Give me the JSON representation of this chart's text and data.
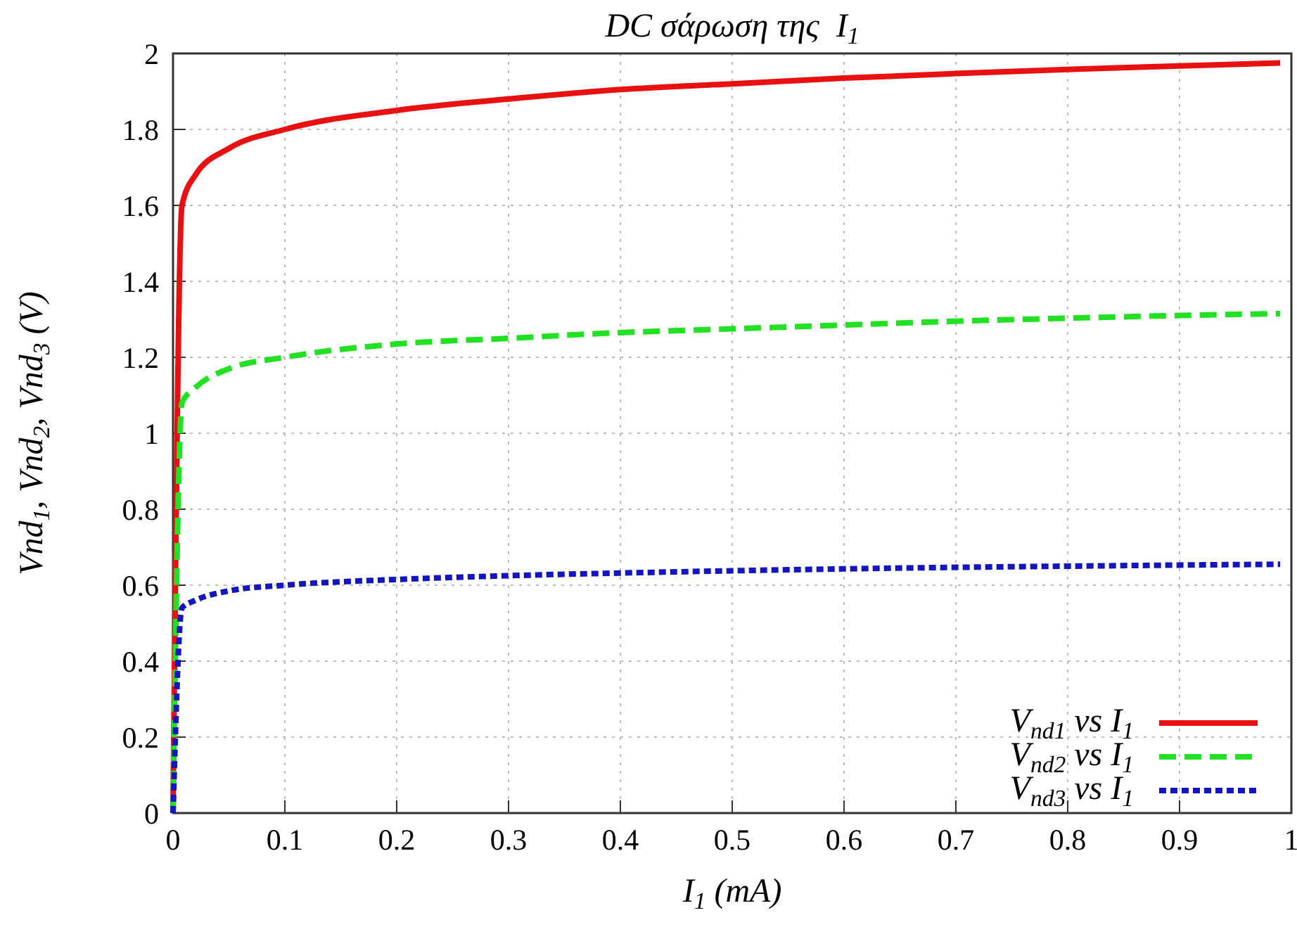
{
  "chart_data": {
    "type": "line",
    "title": "DC σάρωση της  I$_{1}$",
    "xlabel": "I$_{1}$ (mA)",
    "ylabel": "Vnd$_{1}$, Vnd$_{2}$, Vnd$_{3}$ (V)",
    "xlim": [
      0,
      1
    ],
    "ylim": [
      0,
      2
    ],
    "xticks": [
      0,
      0.1,
      0.2,
      0.3,
      0.4,
      0.5,
      0.6,
      0.7,
      0.8,
      0.9,
      1
    ],
    "yticks": [
      0,
      0.2,
      0.4,
      0.6,
      0.8,
      1,
      1.2,
      1.4,
      1.6,
      1.8,
      2
    ],
    "grid": true,
    "legend": "bottom right",
    "marker": "none",
    "series": [
      {
        "name": "V$_{nd1}$ vs I$_{1}$",
        "color": "#e81010",
        "line_style": "solid",
        "x": [
          0,
          0.008,
          0.02,
          0.05,
          0.1,
          0.2,
          0.3,
          0.4,
          0.5,
          0.6,
          0.7,
          0.8,
          0.9,
          0.99
        ],
        "values": [
          0,
          1.6,
          1.68,
          1.75,
          1.8,
          1.85,
          1.88,
          1.905,
          1.92,
          1.935,
          1.947,
          1.958,
          1.967,
          1.975
        ]
      },
      {
        "name": "V$_{nd2}$ vs I$_{1}$",
        "color": "#22e022",
        "line_style": "dashed",
        "x": [
          0,
          0.008,
          0.02,
          0.05,
          0.1,
          0.2,
          0.3,
          0.4,
          0.5,
          0.6,
          0.7,
          0.8,
          0.9,
          0.99
        ],
        "values": [
          0,
          1.08,
          1.12,
          1.17,
          1.2,
          1.235,
          1.25,
          1.265,
          1.275,
          1.285,
          1.295,
          1.303,
          1.31,
          1.315
        ]
      },
      {
        "name": "V$_{nd3}$ vs I$_{1}$",
        "color": "#1515c0",
        "line_style": "dotted",
        "x": [
          0,
          0.008,
          0.02,
          0.05,
          0.1,
          0.2,
          0.3,
          0.4,
          0.5,
          0.6,
          0.7,
          0.8,
          0.9,
          0.99
        ],
        "values": [
          0,
          0.54,
          0.56,
          0.585,
          0.6,
          0.615,
          0.625,
          0.632,
          0.638,
          0.643,
          0.647,
          0.65,
          0.653,
          0.655
        ]
      }
    ]
  }
}
